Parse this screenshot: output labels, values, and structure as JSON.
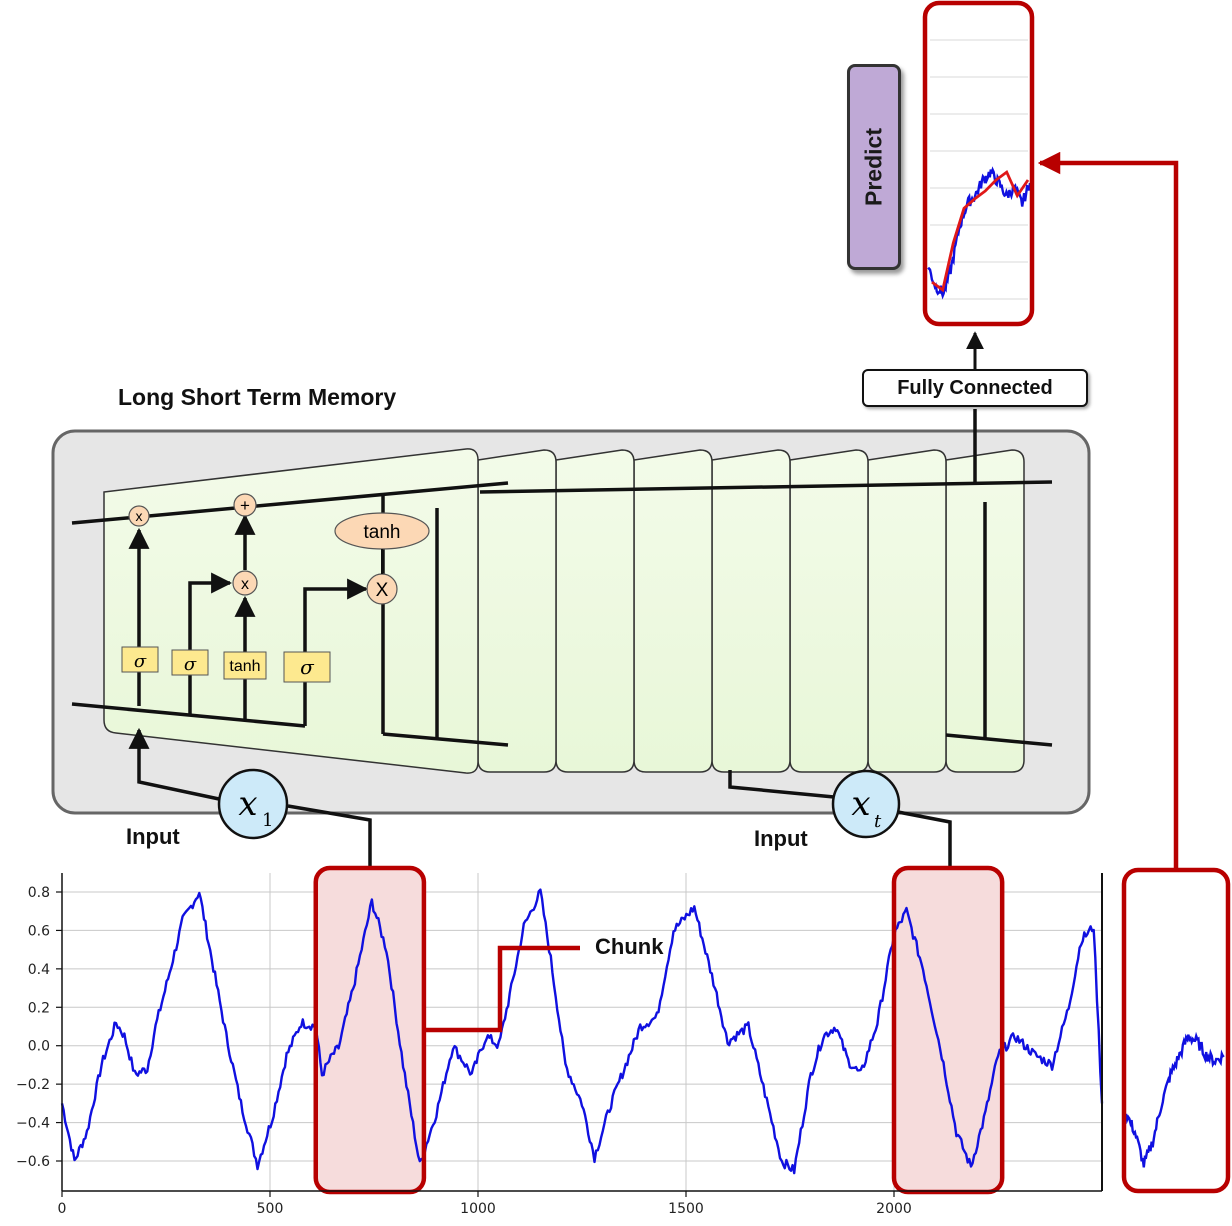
{
  "labels": {
    "lstm_title": "Long Short Term Memory",
    "fully_connected": "Fully Connected",
    "predict": "Predict",
    "input_left": "Input",
    "input_right": "Input",
    "chunk": "Chunk",
    "x1_symbol": "x",
    "x1_subscript": "1",
    "xt_symbol": "x",
    "xt_subscript": "t"
  },
  "lstm_cell": {
    "gate_labels": [
      "σ",
      "σ",
      "tanh",
      "σ"
    ],
    "ops": [
      "x",
      "+",
      "x",
      "X"
    ],
    "tanh_label": "tanh"
  },
  "colors": {
    "signal": "#1010e0",
    "highlight": "#b80000",
    "chunk_fill": "#f6dcdc",
    "prediction_line": "#e01818",
    "cell_fill": "#eef9e0",
    "lstm_panel": "#e6e6e6",
    "gate_fill": "#fde98f",
    "op_fill": "#fcd8b5",
    "input_circle": "#cdeaf9",
    "predict_fill": "#bfa9d6"
  },
  "chart_data": {
    "type": "line",
    "x_ticks": [
      "0",
      "500",
      "1000",
      "1500",
      "2000"
    ],
    "y_ticks": [
      "0.8",
      "0.6",
      "0.4",
      "0.2",
      "0.0",
      "−0.2",
      "−0.4",
      "−0.6"
    ],
    "xlim": [
      0,
      2500
    ],
    "ylim": [
      -0.69,
      0.88
    ],
    "grid": true,
    "series": [
      {
        "x": [
          0,
          30,
          60,
          95,
          130,
          150,
          175,
          205,
          225,
          255,
          290,
          330,
          360,
          395,
          430,
          470,
          505,
          540,
          575,
          610,
          625,
          650,
          665,
          700,
          745,
          780,
          820,
          860,
          900,
          940,
          985,
          1020,
          1050,
          1080,
          1110,
          1150,
          1175,
          1210,
          1250,
          1280,
          1320,
          1355,
          1390,
          1430,
          1470,
          1520,
          1570,
          1600,
          1650,
          1690,
          1730,
          1760,
          1800,
          1830,
          1860,
          1890,
          1920,
          1960,
          2000,
          2030,
          2070,
          2115,
          2150,
          2185,
          2220,
          2250,
          2290,
          2340,
          2380,
          2420,
          2450,
          2480,
          2500
        ],
        "y": [
          -0.3,
          -0.6,
          -0.45,
          -0.1,
          0.12,
          0.05,
          -0.15,
          -0.12,
          0.1,
          0.35,
          0.65,
          0.8,
          0.45,
          0.05,
          -0.3,
          -0.62,
          -0.38,
          -0.05,
          0.12,
          0.1,
          -0.15,
          -0.05,
          -0.01,
          0.3,
          0.75,
          0.5,
          -0.1,
          -0.62,
          -0.35,
          0.0,
          -0.15,
          0.05,
          0.0,
          0.3,
          0.62,
          0.8,
          0.45,
          -0.1,
          -0.3,
          -0.58,
          -0.3,
          -0.1,
          0.1,
          0.15,
          0.6,
          0.72,
          0.3,
          0.02,
          0.1,
          -0.25,
          -0.6,
          -0.65,
          -0.15,
          0.05,
          0.1,
          -0.08,
          -0.15,
          0.12,
          0.58,
          0.7,
          0.4,
          -0.05,
          -0.45,
          -0.63,
          -0.35,
          -0.05,
          0.05,
          -0.05,
          -0.1,
          0.2,
          0.55,
          0.62,
          -0.3
        ]
      }
    ],
    "chunks": [
      [
        610,
        870
      ],
      [
        2000,
        2260
      ]
    ],
    "extract_y": [
      -0.35,
      -0.45,
      -0.62,
      -0.5,
      -0.3,
      -0.15,
      -0.05,
      0.05,
      0.02,
      -0.05,
      -0.08,
      -0.05
    ],
    "predict_actual_y": [
      -0.45,
      -0.58,
      -0.62,
      -0.45,
      -0.2,
      -0.05,
      0.0,
      0.1,
      0.15,
      0.08,
      0.0,
      0.05,
      -0.05,
      0.08
    ],
    "predict_red_y": [
      -0.55,
      -0.6,
      -0.3,
      -0.08,
      -0.02,
      0.03,
      0.1,
      0.15,
      0.0,
      0.1
    ]
  }
}
